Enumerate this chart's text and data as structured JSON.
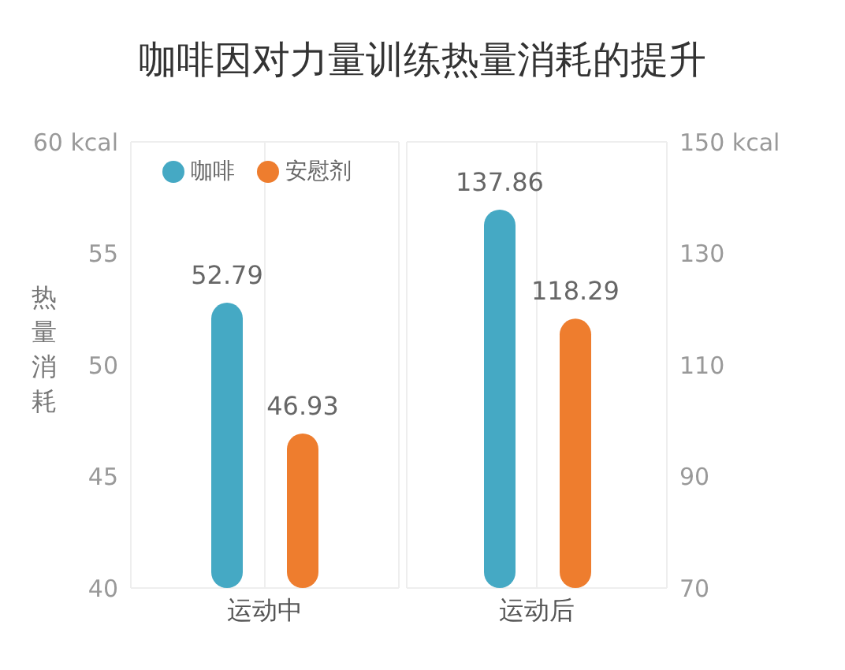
{
  "chart_data": [
    {
      "type": "bar",
      "title": "咖啡因对力量训练热量消耗的提升",
      "ylabel": "热量消耗",
      "categories": [
        "运动中"
      ],
      "series": [
        {
          "name": "咖啡",
          "color": "#45a9c4",
          "values": [
            52.79
          ]
        },
        {
          "name": "安慰剂",
          "color": "#ee7d2e",
          "values": [
            46.93
          ]
        }
      ],
      "ylim": [
        40,
        60
      ],
      "yticks": [
        40,
        45,
        50,
        55,
        {
          "value": 60,
          "label": "60 kcal"
        }
      ],
      "grid": true,
      "legend": "top left",
      "data_labels": true
    },
    {
      "type": "bar",
      "categories": [
        "运动后"
      ],
      "series": [
        {
          "color": "#45a9c4",
          "values": [
            137.86
          ],
          "axis": "y2"
        },
        {
          "color": "#ee7d2e",
          "values": [
            118.29
          ],
          "axis": "y2"
        }
      ],
      "y2lim": [
        70,
        150
      ],
      "y2ticks": [
        70,
        90,
        110,
        130,
        {
          "value": 150,
          "label": "150 kcal"
        }
      ],
      "grid": true,
      "legend": false,
      "data_labels": true
    }
  ]
}
